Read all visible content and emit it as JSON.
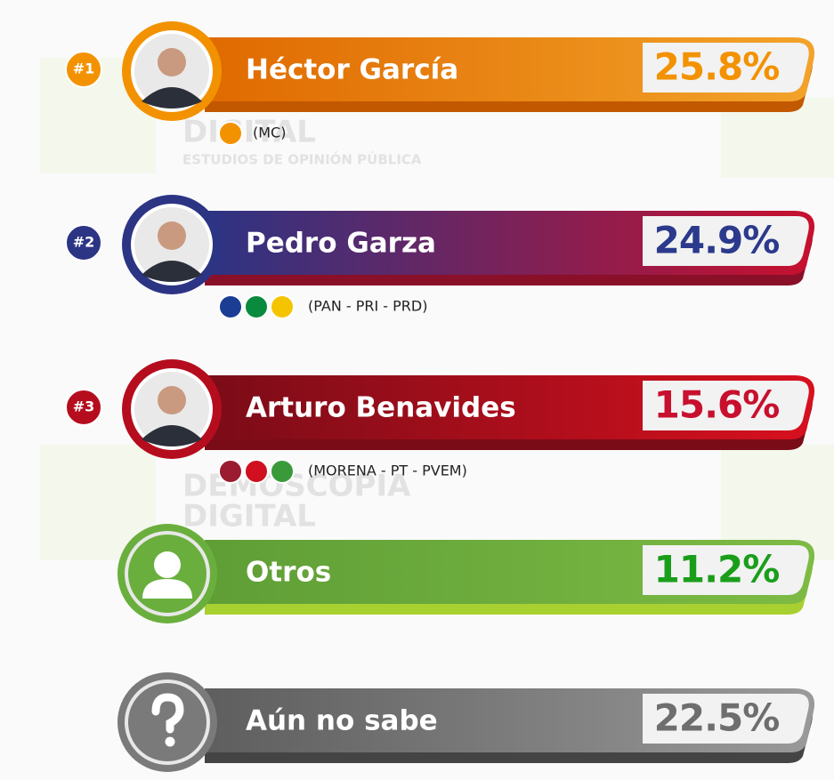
{
  "watermark": {
    "brand_1": "DEMOSCOPIA",
    "brand_2": "DIGITAL",
    "tagline": "ESTUDIOS DE OPINIÓN PÚBLICA"
  },
  "rows": [
    {
      "rank": "#1",
      "name": "Héctor García",
      "percent": "25.8%",
      "party": "(MC)"
    },
    {
      "rank": "#2",
      "name": "Pedro Garza",
      "percent": "24.9%",
      "party": "(PAN - PRI - PRD)"
    },
    {
      "rank": "#3",
      "name": "Arturo Benavides",
      "percent": "15.6%",
      "party": "(MORENA - PT - PVEM)"
    },
    {
      "name": "Otros",
      "percent": "11.2%"
    },
    {
      "name": "Aún no sabe",
      "percent": "22.5%"
    }
  ]
}
